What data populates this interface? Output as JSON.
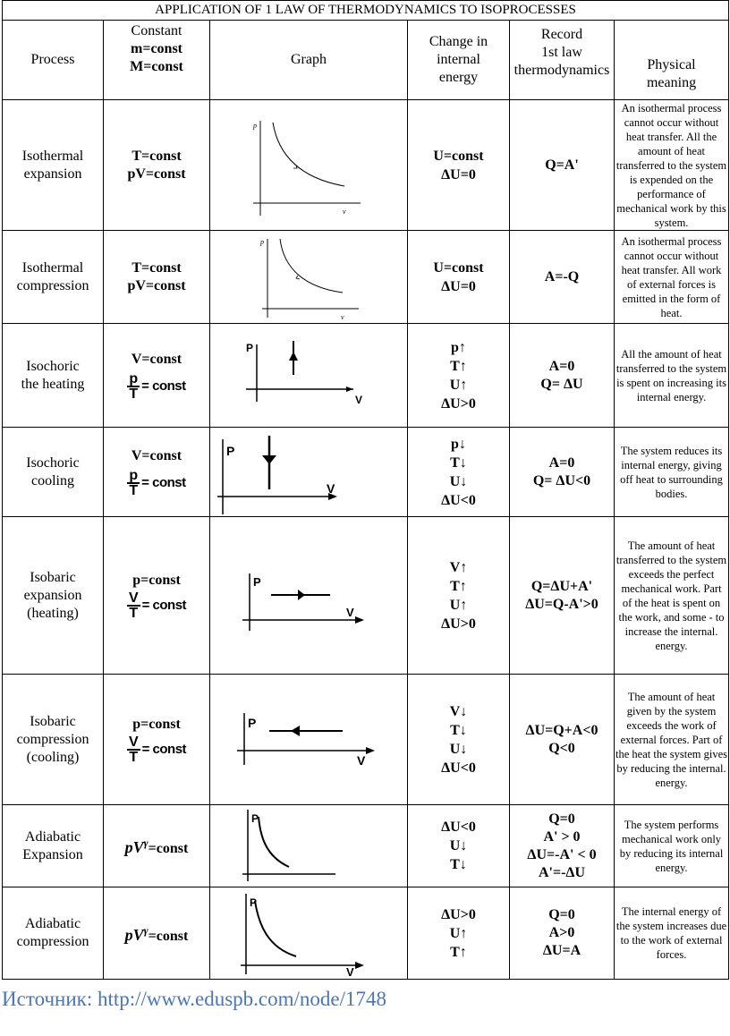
{
  "title": "APPLICATION OF 1 LAW OF THERMODYNAMICS TO ISOPROCESSES",
  "headers": {
    "process": "Process",
    "constant_line1": "Constant",
    "constant_line2": "m=const",
    "constant_line3": "M=const",
    "graph": "Graph",
    "change_lines": [
      "Change in",
      "internal",
      "energy"
    ],
    "record_lines": [
      "Record",
      "1st law",
      "thermodynamics"
    ],
    "physical_lines": [
      "Physical",
      "meaning"
    ]
  },
  "rows": [
    {
      "process": [
        "Isothermal",
        "expansion"
      ],
      "constant": [
        "T=const",
        "pV=const"
      ],
      "change": [
        "U=const",
        "ΔU=0"
      ],
      "record": [
        "Q=A'"
      ],
      "physical": "An isothermal process cannot occur without heat transfer. All the amount of heat transferred to the system is expended on the performance of mechanical work by this system."
    },
    {
      "process": [
        "Isothermal",
        "compression"
      ],
      "constant": [
        "T=const",
        "pV=const"
      ],
      "change": [
        "U=const",
        "ΔU=0"
      ],
      "record": [
        "A=-Q"
      ],
      "physical": "An isothermal process cannot occur without heat transfer. All work of external forces is emitted in the form of heat."
    },
    {
      "process": [
        "Isochoric",
        "the heating"
      ],
      "constant_top": "V=const",
      "frac_num": "p",
      "frac_den": "T",
      "frac_rhs": "= const",
      "change": [
        "p↑",
        "T↑",
        "U↑",
        "ΔU>0"
      ],
      "record": [
        "A=0",
        "Q= ΔU"
      ],
      "physical": "All the amount of heat transferred to the system is spent on increasing its internal energy."
    },
    {
      "process": [
        "Isochoric",
        "cooling"
      ],
      "constant_top": "V=const",
      "frac_num": "p",
      "frac_den": "T",
      "frac_rhs": "= const",
      "change": [
        "p↓",
        "T↓",
        "U↓",
        "ΔU<0"
      ],
      "record": [
        "A=0",
        "Q= ΔU<0"
      ],
      "physical": "The system reduces its internal energy, giving off heat to surrounding bodies."
    },
    {
      "process": [
        "Isobaric",
        "expansion",
        "(heating)"
      ],
      "constant_top": "p=const",
      "frac_num": "V",
      "frac_den": "T",
      "frac_rhs": "= const",
      "change": [
        "V↑",
        "T↑",
        "U↑",
        "ΔU>0"
      ],
      "record": [
        "Q=ΔU+A'",
        "ΔU=Q-A'>0"
      ],
      "physical": "The amount of heat transferred to the system exceeds the perfect mechanical work. Part of the heat is spent on the work, and some - to increase the internal. energy."
    },
    {
      "process": [
        "Isobaric",
        "compression",
        "(cooling)"
      ],
      "constant_top": "p=const",
      "frac_num": "V",
      "frac_den": "T",
      "frac_rhs": "= const",
      "change": [
        "V↓",
        "T↓",
        "U↓",
        "ΔU<0"
      ],
      "record": [
        "ΔU=Q+A<0",
        "Q<0"
      ],
      "physical": "The amount of heat given by the system exceeds the work of external forces. Part of the heat the system gives by reducing the internal. energy."
    },
    {
      "process": [
        "Adiabatic",
        "Expansion"
      ],
      "pv": "pV",
      "gamma": "γ",
      "pv_rhs": "=const",
      "change": [
        "ΔU<0",
        "U↓",
        "T↓"
      ],
      "record": [
        "Q=0",
        "A' > 0",
        "ΔU=-A' < 0",
        "A'=-ΔU"
      ],
      "physical": "The system performs mechanical work only by reducing its internal energy."
    },
    {
      "process": [
        "Adiabatic",
        "compression"
      ],
      "pv": "pV",
      "gamma": "γ",
      "pv_rhs": "=const",
      "change": [
        "ΔU>0",
        "U↑",
        "T↑"
      ],
      "record": [
        "Q=0",
        "A>0",
        "ΔU=A"
      ],
      "physical": "The internal energy of the system increases due to the work of external forces."
    }
  ],
  "axis": {
    "p_small": "p",
    "v_small": "v",
    "p_big": "P",
    "v_big": "V"
  },
  "source": "Источник: http://www.eduspb.com/node/1748"
}
